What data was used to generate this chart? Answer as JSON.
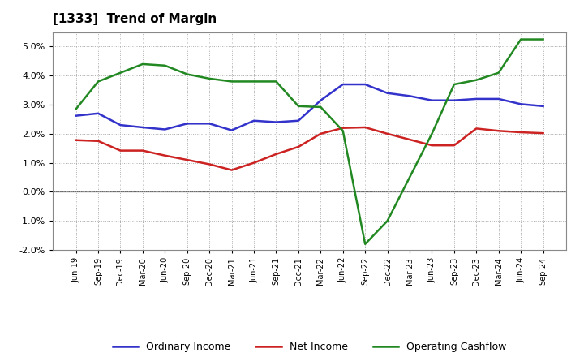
{
  "title": "[1333]  Trend of Margin",
  "title_fontsize": 11,
  "title_fontweight": "bold",
  "labels": [
    "Jun-19",
    "Sep-19",
    "Dec-19",
    "Mar-20",
    "Jun-20",
    "Sep-20",
    "Dec-20",
    "Mar-21",
    "Jun-21",
    "Sep-21",
    "Dec-21",
    "Mar-22",
    "Jun-22",
    "Sep-22",
    "Dec-22",
    "Mar-23",
    "Jun-23",
    "Sep-23",
    "Dec-23",
    "Mar-24",
    "Jun-24",
    "Sep-24"
  ],
  "ordinary_income": [
    2.62,
    2.7,
    2.3,
    2.22,
    2.15,
    2.35,
    2.35,
    2.12,
    2.45,
    2.4,
    2.45,
    3.15,
    3.7,
    3.7,
    3.4,
    3.3,
    3.15,
    3.15,
    3.2,
    3.2,
    3.02,
    2.95
  ],
  "net_income": [
    1.78,
    1.75,
    1.42,
    1.42,
    1.25,
    1.1,
    0.95,
    0.75,
    1.0,
    1.3,
    1.55,
    2.0,
    2.2,
    2.22,
    2.0,
    1.8,
    1.6,
    1.6,
    2.18,
    2.1,
    2.05,
    2.02
  ],
  "operating_cashflow": [
    2.85,
    3.8,
    4.1,
    4.4,
    4.35,
    4.05,
    3.9,
    3.8,
    3.8,
    3.8,
    2.95,
    2.92,
    2.1,
    -1.8,
    -1.0,
    0.5,
    2.0,
    3.7,
    3.85,
    4.1,
    5.25,
    5.25
  ],
  "ylim": [
    -2.0,
    5.5
  ],
  "yticks": [
    -2.0,
    -1.0,
    0.0,
    1.0,
    2.0,
    3.0,
    4.0,
    5.0
  ],
  "line_colors": {
    "ordinary_income": "#3333cc",
    "net_income": "#cc2222",
    "operating_cashflow": "#228822"
  },
  "legend_labels": [
    "Ordinary Income",
    "Net Income",
    "Operating Cashflow"
  ],
  "background_color": "#ffffff",
  "plot_bg_color": "#ffffff",
  "grid_color": "#aaaaaa",
  "grid_style": "dotted"
}
